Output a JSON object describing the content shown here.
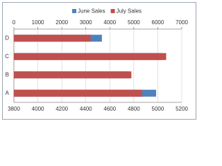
{
  "chart_data": {
    "type": "bar",
    "orientation": "horizontal",
    "categories": [
      "A",
      "B",
      "C",
      "D"
    ],
    "series": [
      {
        "name": "June Sales",
        "color": "#4f81bd",
        "axis": "x2",
        "values": [
          5930,
          4800,
          6200,
          3670
        ]
      },
      {
        "name": "July Sales",
        "color": "#c0504d",
        "axis": "x",
        "values": [
          4870,
          4780,
          5070,
          4440
        ]
      }
    ],
    "xlim": [
      3800,
      5200
    ],
    "xticks": [
      3800,
      4000,
      4200,
      4400,
      4600,
      4800,
      5000,
      5200
    ],
    "x2lim": [
      0,
      7000
    ],
    "x2ticks": [
      0,
      1000,
      2000,
      3000,
      4000,
      5000,
      6000,
      7000
    ],
    "grid": true,
    "legend": "top"
  }
}
